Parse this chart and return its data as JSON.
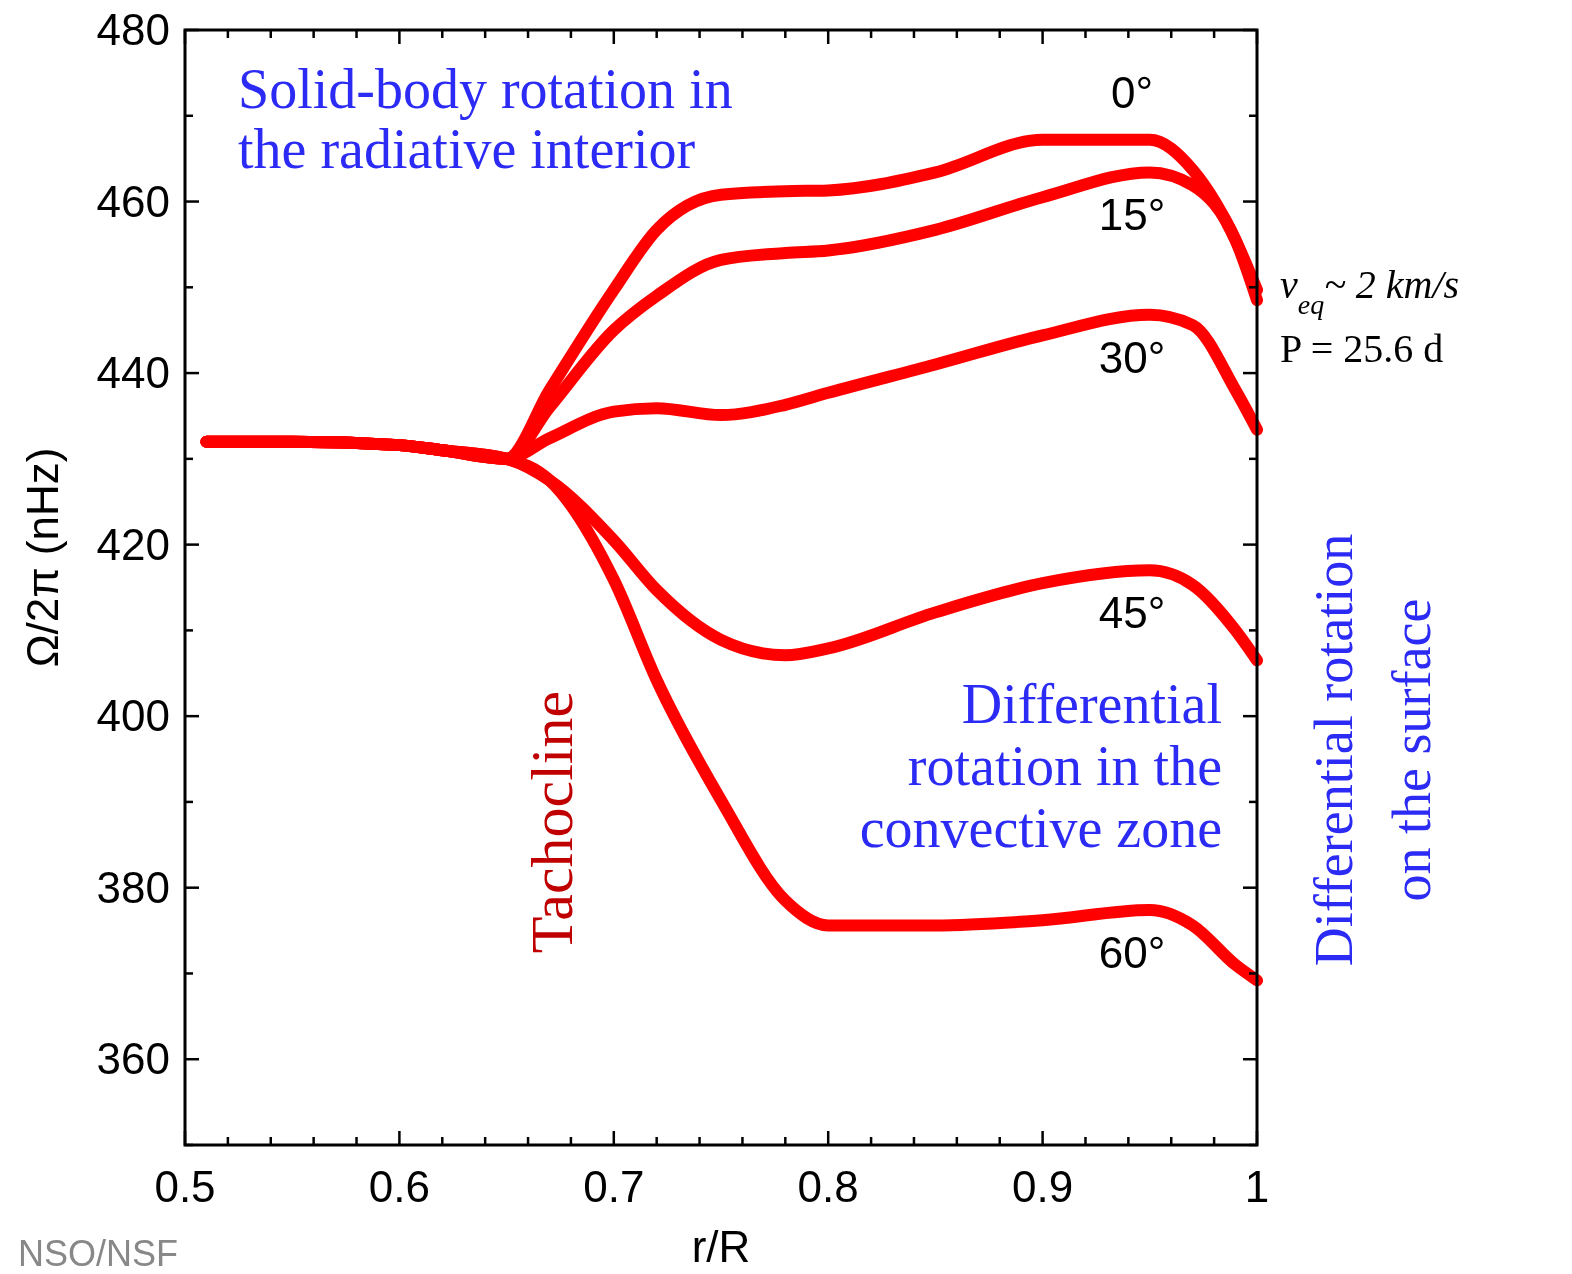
{
  "chart_data": {
    "type": "line",
    "xlabel": "r/R",
    "ylabel": "Ω/2π (nHz)",
    "x": [
      0.51,
      0.55,
      0.6,
      0.62,
      0.65,
      0.67,
      0.7,
      0.72,
      0.75,
      0.78,
      0.8,
      0.85,
      0.9,
      0.95,
      0.97,
      0.99,
      1.0
    ],
    "xlim": [
      0.5,
      1
    ],
    "ylim": [
      350,
      480
    ],
    "xticks": [
      0.5,
      {
        "value": 0.52,
        "label": null
      },
      {
        "value": 0.54,
        "label": null
      },
      {
        "value": 0.56,
        "label": null
      },
      {
        "value": 0.58,
        "label": null
      },
      0.6,
      {
        "value": 0.62,
        "label": null
      },
      {
        "value": 0.64,
        "label": null
      },
      {
        "value": 0.66,
        "label": null
      },
      {
        "value": 0.68,
        "label": null
      },
      0.7,
      {
        "value": 0.72,
        "label": null
      },
      {
        "value": 0.74,
        "label": null
      },
      {
        "value": 0.76,
        "label": null
      },
      {
        "value": 0.78,
        "label": null
      },
      0.8,
      {
        "value": 0.82,
        "label": null
      },
      {
        "value": 0.84,
        "label": null
      },
      {
        "value": 0.86,
        "label": null
      },
      {
        "value": 0.88,
        "label": null
      },
      0.9,
      {
        "value": 0.92,
        "label": null
      },
      {
        "value": 0.94,
        "label": null
      },
      {
        "value": 0.96,
        "label": null
      },
      {
        "value": 0.98,
        "label": null
      },
      1
    ],
    "yticks": [
      {
        "value": 350,
        "label": null
      },
      360,
      {
        "value": 370,
        "label": null
      },
      380,
      {
        "value": 390,
        "label": null
      },
      400,
      {
        "value": 410,
        "label": null
      },
      420,
      {
        "value": 430,
        "label": null
      },
      440,
      {
        "value": 450,
        "label": null
      },
      460,
      {
        "value": 470,
        "label": null
      },
      480
    ],
    "grid": false,
    "legend": false,
    "line_style": "solid",
    "series": [
      {
        "name": "0°",
        "color": "#ff0000",
        "values": [
          432,
          432,
          431.6,
          431,
          430,
          438,
          449.7,
          456.7,
          460.8,
          461.2,
          461.3,
          463.4,
          467.2,
          467.2,
          463.7,
          455.5,
          449.7
        ]
      },
      {
        "name": "15°",
        "color": "#ff0000",
        "values": [
          432,
          432,
          431.6,
          431,
          430,
          436,
          445,
          449,
          453.2,
          454,
          454.3,
          456.7,
          460.5,
          463.4,
          461.9,
          455.5,
          448.5
        ]
      },
      {
        "name": "30°",
        "color": "#ff0000",
        "values": [
          432,
          432,
          431.6,
          431,
          430,
          432.4,
          435.5,
          435.9,
          435.1,
          436.3,
          437.7,
          441,
          444.4,
          446.8,
          445.6,
          438,
          433.4
        ]
      },
      {
        "name": "45°",
        "color": "#ff0000",
        "values": [
          432,
          432,
          431.6,
          431,
          430,
          427.5,
          420.5,
          414.7,
          408.9,
          407.1,
          407.9,
          412.1,
          415.5,
          417,
          415.3,
          410,
          406.5
        ]
      },
      {
        "name": "60°",
        "color": "#ff0000",
        "values": [
          432,
          432,
          431.6,
          431,
          430,
          427.5,
          415.9,
          404.2,
          390.2,
          378.5,
          375.6,
          375.6,
          376.2,
          377.4,
          375.6,
          371,
          369.2
        ]
      }
    ],
    "annotations": [
      "Solid-body rotation in\nthe radiative interior",
      "Differential\nrotation in the\nconvective zone",
      "Tachocline",
      "Differential rotation\non the surface",
      "v$_{eq}$~ 2 km/s",
      "P = 25.6 d",
      "NSO/NSF"
    ]
  }
}
